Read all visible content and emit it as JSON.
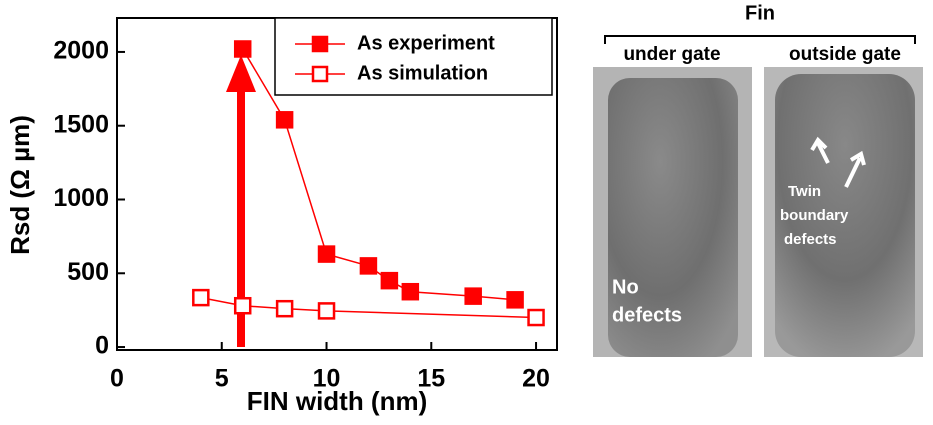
{
  "chart_data": {
    "type": "line",
    "xlabel": "FIN width (nm)",
    "ylabel": "Rsd (Ω µm)",
    "xlim": [
      0,
      21
    ],
    "ylim": [
      -20,
      2230
    ],
    "xticks": [
      0,
      5,
      10,
      15,
      20
    ],
    "yticks": [
      0,
      500,
      1000,
      1500,
      2000
    ],
    "legend": "upper right",
    "series": [
      {
        "name": "As experiment",
        "color": "#ff0000",
        "filled": true,
        "x": [
          6,
          8,
          10,
          12,
          13,
          14,
          17,
          19
        ],
        "values": [
          2020,
          1540,
          630,
          550,
          450,
          375,
          345,
          320
        ]
      },
      {
        "name": "As simulation",
        "color": "#ff0000",
        "filled": false,
        "x": [
          4,
          6,
          8,
          10,
          20
        ],
        "values": [
          335,
          280,
          260,
          245,
          200
        ]
      }
    ]
  },
  "image_panel": {
    "title": "Fin",
    "left_label": "under gate",
    "right_label": "outside gate",
    "left_note": [
      "No",
      "defects"
    ],
    "right_note": [
      "Twin",
      "boundary",
      "defects"
    ]
  }
}
